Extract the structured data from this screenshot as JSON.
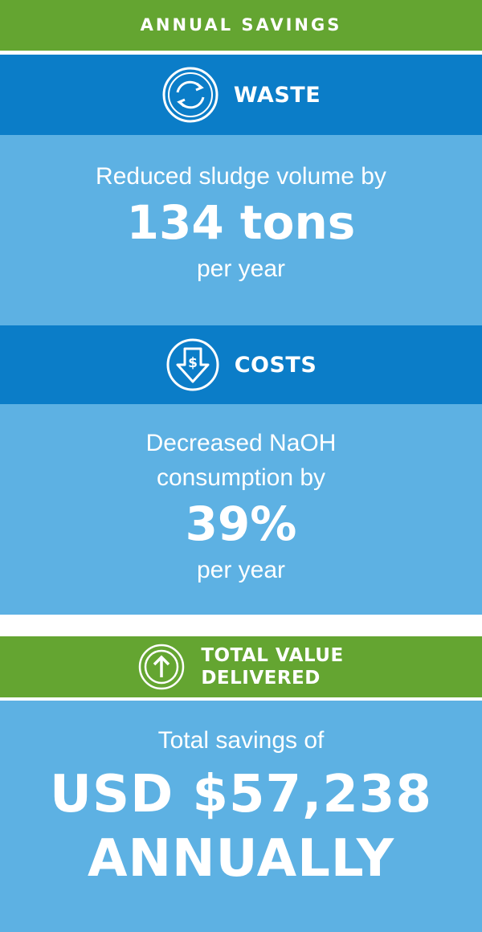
{
  "header": {
    "title": "ANNUAL SAVINGS"
  },
  "sections": [
    {
      "title": "WASTE",
      "lead": [
        "Reduced sludge volume by"
      ],
      "figure": "134 tons",
      "tail": "per year"
    },
    {
      "title": "COSTS",
      "lead": [
        "Decreased NaOH",
        "consumption by"
      ],
      "figure": "39%",
      "tail": "per year"
    }
  ],
  "total": {
    "title": [
      "TOTAL VALUE",
      "DELIVERED"
    ],
    "lead": "Total savings of",
    "figure": [
      "USD $57,238",
      "ANNUALLY"
    ]
  }
}
